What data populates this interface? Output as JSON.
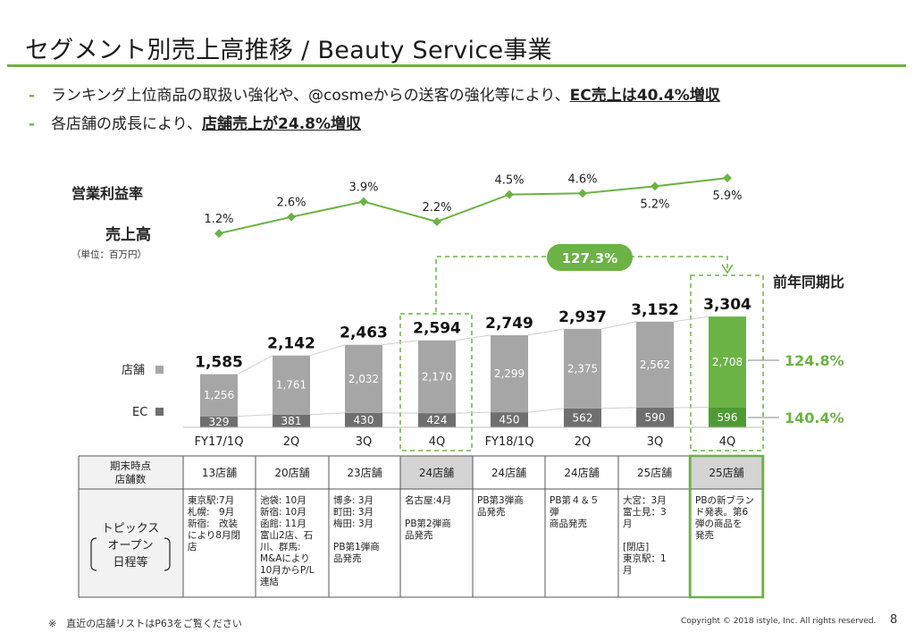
{
  "title": "セグメント別売上高推移 / Beauty Service事業",
  "bullets": [
    {
      "dash": "-",
      "text": "ランキング上位商品の取扱い強化や、@cosmeからの送客の強化等により、",
      "bold": "EC売上は40.4%増収"
    },
    {
      "dash": "-",
      "text": "各店舗の成長により、",
      "bold": "店舗売上が24.8%増収"
    }
  ],
  "labels": {
    "margin_label": "営業利益率",
    "sales_label": "売上高",
    "unit_label": "（単位：百万円）",
    "yoy_label": "前年同期比",
    "growth_badge": "127.3%",
    "store_legend": "店舗",
    "ec_legend": "EC",
    "store_yoy": "124.8%",
    "ec_yoy": "140.4%"
  },
  "chart_data": {
    "type": "bar",
    "categories": [
      "FY17/1Q",
      "2Q",
      "3Q",
      "4Q",
      "FY18/1Q",
      "2Q",
      "3Q",
      "4Q"
    ],
    "series": [
      {
        "name": "EC",
        "values": [
          329,
          381,
          430,
          424,
          450,
          562,
          590,
          596
        ]
      },
      {
        "name": "店舗",
        "values": [
          1256,
          1761,
          2032,
          2170,
          2299,
          2375,
          2562,
          2708
        ]
      }
    ],
    "totals": [
      "1,585",
      "2,142",
      "2,463",
      "2,594",
      "2,749",
      "2,937",
      "3,152",
      "3,304"
    ],
    "total_values": [
      1585,
      2142,
      2463,
      2594,
      2749,
      2937,
      3152,
      3304
    ],
    "store_labels": [
      "1,256",
      "1,761",
      "2,032",
      "2,170",
      "2,299",
      "2,375",
      "2,562",
      "2,708"
    ],
    "ec_labels": [
      "329",
      "381",
      "430",
      "424",
      "450",
      "562",
      "590",
      "596"
    ],
    "margin": {
      "values": [
        1.2,
        2.6,
        3.9,
        2.2,
        4.5,
        4.6,
        5.2,
        5.9
      ],
      "labels": [
        "1.2%",
        "2.6%",
        "3.9%",
        "2.2%",
        "4.5%",
        "4.6%",
        "5.2%",
        "5.9%"
      ]
    },
    "colors": {
      "store": "#a6a6a6",
      "ec": "#6f6f6f",
      "store_highlight": "#6bb344",
      "ec_highlight": "#4f9a34",
      "accent": "#6bb344"
    }
  },
  "table": {
    "row1_header": "期末時点\n店舗数",
    "row2_header": [
      "トピックス",
      "オープン",
      "日程等"
    ],
    "stores": [
      "13店舗",
      "20店舗",
      "23店舗",
      "24店舗",
      "24店舗",
      "24店舗",
      "25店舗",
      "25店舗"
    ],
    "topics": [
      [
        "東京駅:7月",
        "札幌:　9月",
        "新宿:　改装",
        "により8月閉",
        "店"
      ],
      [
        "池袋: 10月",
        "新宿: 10月",
        "函館: 11月",
        "富山2店、石",
        "川、群馬:",
        "M&Aにより",
        "10月からP/L",
        "連結"
      ],
      [
        "博多: 3月",
        "町田: 3月",
        "梅田: 3月",
        "",
        "PB第1弾商",
        "品発売"
      ],
      [
        "名古屋:4月",
        "",
        "PB第2弾商",
        "品発売"
      ],
      [
        "PB第3弾商",
        "品発売"
      ],
      [
        "PB第４＆５",
        "弾",
        "商品発売"
      ],
      [
        "大宮：3月",
        "富士見：3",
        "月",
        "",
        "[閉店]",
        "東京駅：1",
        "月"
      ],
      [
        "PBの新ブラン",
        "ド発表。第6",
        "弾の商品を",
        "発売"
      ]
    ]
  },
  "footer": {
    "note": "※　直近の店舗リストはP63をご覧ください",
    "copyright": "Copyright © 2018 istyle, Inc. All rights reserved.",
    "page": "8"
  }
}
